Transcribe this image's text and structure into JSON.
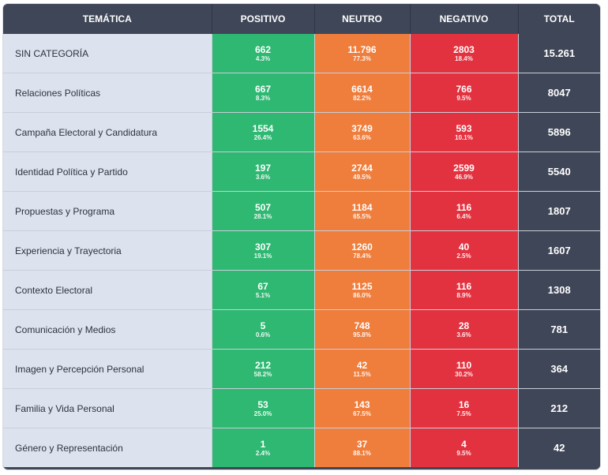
{
  "headers": [
    "TEMÁTICA",
    "POSITIVO",
    "NEUTRO",
    "NEGATIVO",
    "TOTAL"
  ],
  "colors": {
    "header": "#3f4657",
    "positive": "#2eb872",
    "neutral": "#ef7d3b",
    "negative": "#e3323f",
    "category_bg": "#dde3ee"
  },
  "rows": [
    {
      "cat": "SIN CATEGORÍA",
      "pos": "662",
      "pos_pct": "4.3%",
      "neu": "11.796",
      "neu_pct": "77.3%",
      "neg": "2803",
      "neg_pct": "18.4%",
      "total": "15.261"
    },
    {
      "cat": "Relaciones Políticas",
      "pos": "667",
      "pos_pct": "8.3%",
      "neu": "6614",
      "neu_pct": "82.2%",
      "neg": "766",
      "neg_pct": "9.5%",
      "total": "8047"
    },
    {
      "cat": "Campaña Electoral y Candidatura",
      "pos": "1554",
      "pos_pct": "26.4%",
      "neu": "3749",
      "neu_pct": "63.6%",
      "neg": "593",
      "neg_pct": "10.1%",
      "total": "5896"
    },
    {
      "cat": "Identidad Política y Partido",
      "pos": "197",
      "pos_pct": "3.6%",
      "neu": "2744",
      "neu_pct": "49.5%",
      "neg": "2599",
      "neg_pct": "46.9%",
      "total": "5540"
    },
    {
      "cat": "Propuestas y Programa",
      "pos": "507",
      "pos_pct": "28.1%",
      "neu": "1184",
      "neu_pct": "65.5%",
      "neg": "116",
      "neg_pct": "6.4%",
      "total": "1807"
    },
    {
      "cat": "Experiencia y Trayectoria",
      "pos": "307",
      "pos_pct": "19.1%",
      "neu": "1260",
      "neu_pct": "78.4%",
      "neg": "40",
      "neg_pct": "2.5%",
      "total": "1607"
    },
    {
      "cat": "Contexto Electoral",
      "pos": "67",
      "pos_pct": "5.1%",
      "neu": "1125",
      "neu_pct": "86.0%",
      "neg": "116",
      "neg_pct": "8.9%",
      "total": "1308"
    },
    {
      "cat": "Comunicación y Medios",
      "pos": "5",
      "pos_pct": "0.6%",
      "neu": "748",
      "neu_pct": "95.8%",
      "neg": "28",
      "neg_pct": "3.6%",
      "total": "781"
    },
    {
      "cat": "Imagen y Percepción Personal",
      "pos": "212",
      "pos_pct": "58.2%",
      "neu": "42",
      "neu_pct": "11.5%",
      "neg": "110",
      "neg_pct": "30.2%",
      "total": "364"
    },
    {
      "cat": "Familia y Vida Personal",
      "pos": "53",
      "pos_pct": "25.0%",
      "neu": "143",
      "neu_pct": "67.5%",
      "neg": "16",
      "neg_pct": "7.5%",
      "total": "212"
    },
    {
      "cat": "Género y Representación",
      "pos": "1",
      "pos_pct": "2.4%",
      "neu": "37",
      "neu_pct": "88.1%",
      "neg": "4",
      "neg_pct": "9.5%",
      "total": "42"
    }
  ]
}
